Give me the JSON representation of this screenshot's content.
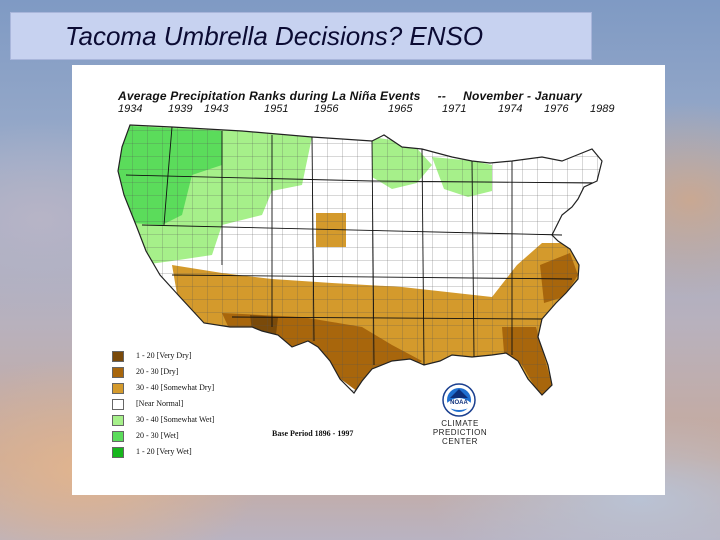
{
  "slide": {
    "title": "Tacoma Umbrella Decisions? ENSO"
  },
  "map": {
    "heading": "Average Precipitation Ranks during La  Niña Events",
    "dash": "--",
    "season": "November - January",
    "years": [
      "1934",
      "1939",
      "1943",
      "1951",
      "1956",
      "1965",
      "1971",
      "1974",
      "1976",
      "1989"
    ],
    "legend": [
      {
        "label": "1 - 20 [Very Dry]",
        "color": "#7a4a0a"
      },
      {
        "label": "20 - 30 [Dry]",
        "color": "#a8660c"
      },
      {
        "label": "30 - 40 [Somewhat Dry]",
        "color": "#d49a2c"
      },
      {
        "label": "[Near Normal]",
        "color": "#ffffff"
      },
      {
        "label": "30 - 40 [Somewhat Wet]",
        "color": "#a6f08a"
      },
      {
        "label": "20 - 30 [Wet]",
        "color": "#5bdc5b"
      },
      {
        "label": "1 - 20 [Very Wet]",
        "color": "#16b61c"
      }
    ],
    "base_period": "Base Period  1896 - 1997",
    "logo_text": "NOAA",
    "center_name_line1": "CLIMATE PREDICTION",
    "center_name_line2": "CENTER"
  }
}
